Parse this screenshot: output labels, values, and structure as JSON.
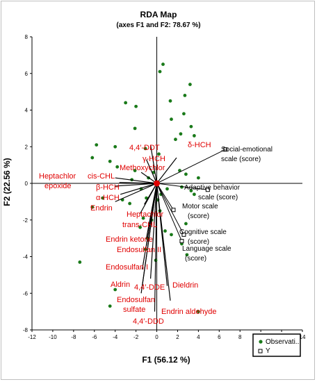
{
  "chart_data": {
    "type": "biplot",
    "title": "RDA Map",
    "subtitle": "(axes F1 and F2: 78.67 %)",
    "xlabel": "F1 (56.12 %)",
    "ylabel": "F2 (22.56 %)",
    "xlim": [
      -12,
      14
    ],
    "ylim": [
      -8,
      8
    ],
    "xticks": [
      -12,
      -10,
      -8,
      -6,
      -4,
      -2,
      0,
      2,
      4,
      6,
      8,
      10,
      12,
      14
    ],
    "yticks": [
      -8,
      -6,
      -4,
      -2,
      0,
      2,
      4,
      6,
      8
    ],
    "legend": {
      "position": "bottom-right",
      "entries": [
        {
          "label": "Observati..",
          "marker": "green-dot",
          "color": "#1a7a1a"
        },
        {
          "label": "Y",
          "marker": "open-square",
          "color": "#000000"
        }
      ]
    },
    "observations": {
      "name": "Observations",
      "color": "#1a7a1a",
      "points": [
        [
          0.3,
          6.1
        ],
        [
          0.6,
          6.5
        ],
        [
          3.2,
          5.4
        ],
        [
          2.7,
          4.8
        ],
        [
          -3.0,
          4.4
        ],
        [
          -2.0,
          4.2
        ],
        [
          1.3,
          4.5
        ],
        [
          2.6,
          3.8
        ],
        [
          1.4,
          3.5
        ],
        [
          3.3,
          3.1
        ],
        [
          -2.1,
          3.0
        ],
        [
          2.3,
          2.7
        ],
        [
          3.6,
          2.6
        ],
        [
          1.8,
          2.4
        ],
        [
          -5.8,
          2.1
        ],
        [
          -4.0,
          2.0
        ],
        [
          -1.1,
          1.9
        ],
        [
          0.2,
          1.6
        ],
        [
          -6.2,
          1.4
        ],
        [
          -4.5,
          1.2
        ],
        [
          -3.8,
          0.9
        ],
        [
          -2.1,
          0.7
        ],
        [
          2.2,
          0.7
        ],
        [
          2.8,
          0.5
        ],
        [
          -0.8,
          0.3
        ],
        [
          4.0,
          0.3
        ],
        [
          -1.5,
          -0.3
        ],
        [
          2.4,
          -0.2
        ],
        [
          3.3,
          -0.4
        ],
        [
          3.6,
          -0.6
        ],
        [
          -5.2,
          -0.8
        ],
        [
          -3.3,
          -0.9
        ],
        [
          0.1,
          -0.9
        ],
        [
          -2.6,
          -1.1
        ],
        [
          -6.2,
          -1.3
        ],
        [
          0.3,
          -1.5
        ],
        [
          -0.5,
          -2.0
        ],
        [
          2.8,
          -2.2
        ],
        [
          -1.6,
          -2.4
        ],
        [
          0.8,
          -2.6
        ],
        [
          1.4,
          -2.8
        ],
        [
          -0.9,
          -3.0
        ],
        [
          2.4,
          -3.3
        ],
        [
          -1.1,
          -3.6
        ],
        [
          -0.1,
          -4.2
        ],
        [
          2.9,
          -3.9
        ],
        [
          -7.4,
          -4.3
        ],
        [
          -4.0,
          -5.8
        ],
        [
          -4.5,
          -6.7
        ],
        [
          4.0,
          -7.0
        ],
        [
          -1.3,
          -1.9
        ],
        [
          0.4,
          -0.6
        ],
        [
          -0.3,
          0.6
        ],
        [
          1.0,
          -0.3
        ],
        [
          -2.4,
          0.2
        ],
        [
          -1.0,
          -0.8
        ]
      ]
    },
    "dependent_variables": [
      {
        "label": "Social-emotional scale (score)",
        "x": 6.6,
        "y": 1.85
      },
      {
        "label": "Adaptive behavior scale (score)",
        "x": 4.9,
        "y": -0.35
      },
      {
        "label": "Motor scale (score)",
        "x": 1.6,
        "y": -1.45
      },
      {
        "label": "Cognitive scale (score)",
        "x": 2.6,
        "y": -2.8
      },
      {
        "label": "Language scale (score)",
        "x": 2.4,
        "y": -3.15
      }
    ],
    "explanatory_variables": [
      {
        "label": "4,4′-DDT",
        "x": -0.6,
        "y": 2.1
      },
      {
        "label": "δ-HCH",
        "x": 1.9,
        "y": 1.4
      },
      {
        "label": "γ-HCH",
        "x": -1.0,
        "y": 1.3
      },
      {
        "label": "Methoxychlor",
        "x": -1.5,
        "y": 0.6
      },
      {
        "label": "Heptachlor epoxide",
        "x": -4.0,
        "y": 0.3
      },
      {
        "label": "cis-CHL",
        "x": -3.6,
        "y": 0.05
      },
      {
        "label": "β-HCH",
        "x": -4.0,
        "y": -0.15
      },
      {
        "label": "α-HCH",
        "x": -3.5,
        "y": -0.6
      },
      {
        "label": "Endrin",
        "x": -4.0,
        "y": -1.0
      },
      {
        "label": "Heptachlor",
        "x": -1.2,
        "y": -1.15
      },
      {
        "label": "trans-CHL",
        "x": -1.6,
        "y": -1.65
      },
      {
        "label": "Endrin ketone",
        "x": -1.0,
        "y": -3.0
      },
      {
        "label": "Endosulfan II",
        "x": -1.0,
        "y": -3.4
      },
      {
        "label": "Endosulfan I",
        "x": -1.4,
        "y": -4.7
      },
      {
        "label": "Aldrin",
        "x": -1.5,
        "y": -6.0
      },
      {
        "label": "4,4′-DDE",
        "x": -1.4,
        "y": -5.6
      },
      {
        "label": "Endosulfan sulfate",
        "x": -0.6,
        "y": -5.2
      },
      {
        "label": "4,4′-DDD",
        "x": -0.2,
        "y": -7.0
      },
      {
        "label": "Dieldrin",
        "x": 1.0,
        "y": -5.6
      },
      {
        "label": "Endrin aldehyde",
        "x": 1.3,
        "y": -6.4
      }
    ]
  }
}
